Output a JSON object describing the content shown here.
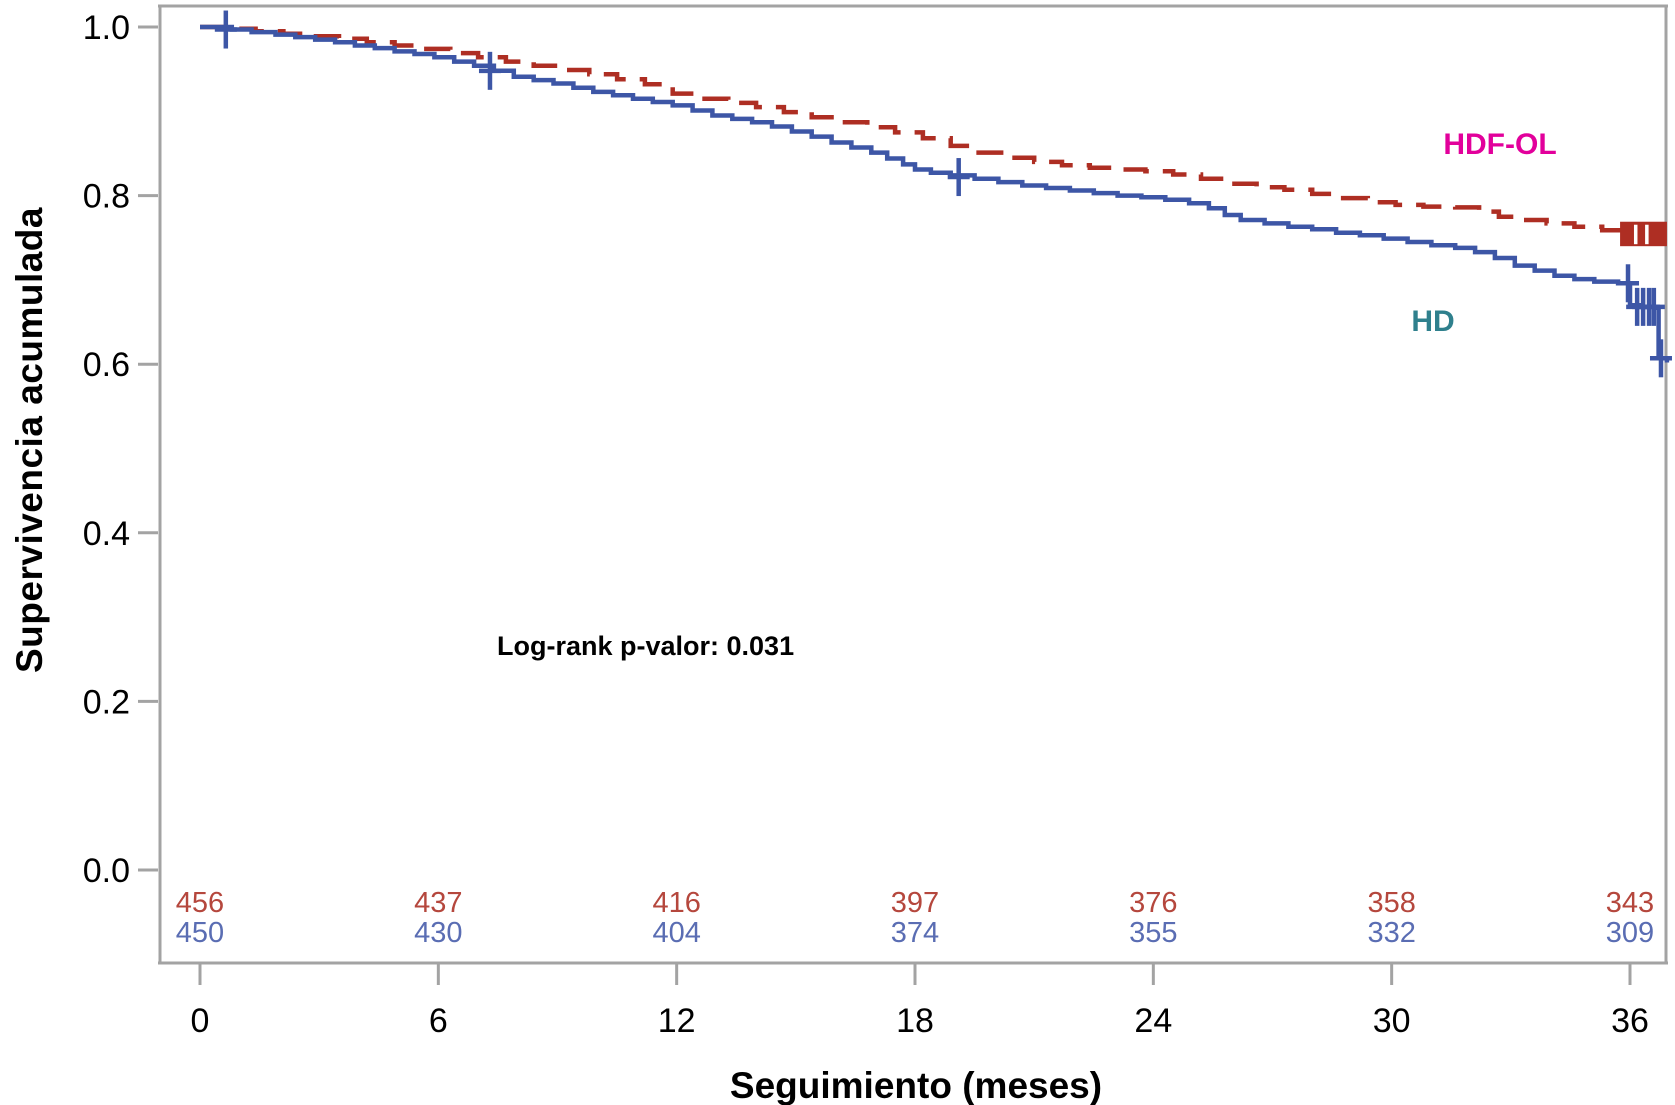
{
  "figure": {
    "y_axis": {
      "title": "Supervivencia acumulada",
      "tick_labels": [
        "1.0",
        "0.8",
        "0.6",
        "0.4",
        "0.2",
        "0.0"
      ],
      "tick_values": [
        1.0,
        0.8,
        0.6,
        0.4,
        0.2,
        0.0
      ],
      "range": [
        0.0,
        1.0
      ]
    },
    "x_axis": {
      "title": "Seguimiento (meses)",
      "tick_labels": [
        "0",
        "6",
        "12",
        "18",
        "24",
        "30",
        "36"
      ],
      "tick_values": [
        0,
        6,
        12,
        18,
        24,
        30,
        36
      ],
      "range": [
        0,
        37
      ]
    },
    "annotation": "Log-rank p-valor: 0.031",
    "series_labels": {
      "hdfol": {
        "text": "HDF-OL",
        "color": "#E2009B"
      },
      "hd": {
        "text": "HD",
        "color": "#2F808D"
      }
    },
    "colors": {
      "hdfol_line": "#AE2E23",
      "hd_line": "#3D56A6",
      "risk_red_text": "#B5473D",
      "risk_blue_text": "#5A6DB3",
      "frame_grey": "#A3A3A3",
      "text_black": "#000000"
    }
  },
  "chart_data": {
    "type": "line",
    "subtype": "kaplan-meier-step",
    "title": "",
    "xlabel": "Seguimiento (meses)",
    "ylabel": "Supervivencia acumulada",
    "xlim": [
      0,
      37
    ],
    "ylim": [
      0.0,
      1.0
    ],
    "grid": false,
    "legend_position": "inline-labels",
    "annotation": "Log-rank p-valor: 0.031",
    "series": [
      {
        "name": "HDF-OL",
        "color": "#AE2E23",
        "style": "dashed",
        "points": [
          [
            0,
            1.0
          ],
          [
            0.7,
            0.998
          ],
          [
            1.4,
            0.995
          ],
          [
            2.1,
            0.992
          ],
          [
            2.8,
            0.989
          ],
          [
            3.5,
            0.986
          ],
          [
            4.2,
            0.982
          ],
          [
            4.9,
            0.978
          ],
          [
            5.6,
            0.974
          ],
          [
            6.3,
            0.969
          ],
          [
            7.0,
            0.964
          ],
          [
            7.7,
            0.959
          ],
          [
            8.4,
            0.954
          ],
          [
            9.1,
            0.949
          ],
          [
            9.8,
            0.944
          ],
          [
            10.5,
            0.938
          ],
          [
            11.2,
            0.932
          ],
          [
            11.9,
            0.921
          ],
          [
            12.6,
            0.915
          ],
          [
            13.3,
            0.91
          ],
          [
            14.0,
            0.905
          ],
          [
            14.7,
            0.899
          ],
          [
            15.4,
            0.893
          ],
          [
            16.1,
            0.887
          ],
          [
            16.8,
            0.881
          ],
          [
            17.5,
            0.875
          ],
          [
            18.2,
            0.868
          ],
          [
            18.9,
            0.859
          ],
          [
            19.6,
            0.851
          ],
          [
            20.3,
            0.845
          ],
          [
            21.0,
            0.84
          ],
          [
            21.7,
            0.836
          ],
          [
            22.4,
            0.833
          ],
          [
            23.1,
            0.831
          ],
          [
            23.8,
            0.829
          ],
          [
            24.5,
            0.825
          ],
          [
            25.2,
            0.82
          ],
          [
            25.9,
            0.814
          ],
          [
            26.6,
            0.81
          ],
          [
            27.3,
            0.807
          ],
          [
            28.0,
            0.802
          ],
          [
            28.7,
            0.797
          ],
          [
            29.4,
            0.792
          ],
          [
            30.1,
            0.789
          ],
          [
            30.8,
            0.787
          ],
          [
            31.6,
            0.786
          ],
          [
            32.2,
            0.781
          ],
          [
            32.7,
            0.775
          ],
          [
            33.2,
            0.771
          ],
          [
            33.9,
            0.767
          ],
          [
            34.6,
            0.763
          ],
          [
            35.3,
            0.759
          ],
          [
            35.8,
            0.755
          ],
          [
            36.93,
            0.753
          ]
        ],
        "censor_block": {
          "x_start": 35.75,
          "x_end": 36.93,
          "v_top": 0.769,
          "v_bottom": 0.74,
          "gap_months": [
            36.1,
            36.38
          ]
        }
      },
      {
        "name": "HD",
        "color": "#3D56A6",
        "style": "solid",
        "points": [
          [
            0,
            1.0
          ],
          [
            0.8,
            0.997
          ],
          [
            1.3,
            0.994
          ],
          [
            1.9,
            0.991
          ],
          [
            2.4,
            0.988
          ],
          [
            2.9,
            0.985
          ],
          [
            3.4,
            0.982
          ],
          [
            3.9,
            0.978
          ],
          [
            4.4,
            0.975
          ],
          [
            4.9,
            0.971
          ],
          [
            5.4,
            0.968
          ],
          [
            5.9,
            0.964
          ],
          [
            6.4,
            0.959
          ],
          [
            6.9,
            0.954
          ],
          [
            7.4,
            0.948
          ],
          [
            7.9,
            0.941
          ],
          [
            8.4,
            0.937
          ],
          [
            8.9,
            0.933
          ],
          [
            9.4,
            0.928
          ],
          [
            9.9,
            0.923
          ],
          [
            10.4,
            0.919
          ],
          [
            10.9,
            0.915
          ],
          [
            11.4,
            0.911
          ],
          [
            11.9,
            0.907
          ],
          [
            12.4,
            0.901
          ],
          [
            12.9,
            0.895
          ],
          [
            13.4,
            0.891
          ],
          [
            13.9,
            0.887
          ],
          [
            14.4,
            0.882
          ],
          [
            14.9,
            0.876
          ],
          [
            15.4,
            0.87
          ],
          [
            15.9,
            0.863
          ],
          [
            16.4,
            0.857
          ],
          [
            16.9,
            0.851
          ],
          [
            17.3,
            0.844
          ],
          [
            17.7,
            0.837
          ],
          [
            18.0,
            0.831
          ],
          [
            18.4,
            0.827
          ],
          [
            18.9,
            0.824
          ],
          [
            19.5,
            0.82
          ],
          [
            20.1,
            0.816
          ],
          [
            20.7,
            0.812
          ],
          [
            21.3,
            0.809
          ],
          [
            21.9,
            0.806
          ],
          [
            22.5,
            0.803
          ],
          [
            23.1,
            0.8
          ],
          [
            23.7,
            0.798
          ],
          [
            24.3,
            0.795
          ],
          [
            24.9,
            0.791
          ],
          [
            25.4,
            0.785
          ],
          [
            25.8,
            0.777
          ],
          [
            26.2,
            0.771
          ],
          [
            26.8,
            0.767
          ],
          [
            27.4,
            0.763
          ],
          [
            28.0,
            0.76
          ],
          [
            28.6,
            0.756
          ],
          [
            29.2,
            0.753
          ],
          [
            29.8,
            0.749
          ],
          [
            30.4,
            0.745
          ],
          [
            31.0,
            0.741
          ],
          [
            31.6,
            0.738
          ],
          [
            32.1,
            0.733
          ],
          [
            32.6,
            0.726
          ],
          [
            33.1,
            0.717
          ],
          [
            33.6,
            0.711
          ],
          [
            34.1,
            0.705
          ],
          [
            34.6,
            0.701
          ],
          [
            35.1,
            0.698
          ],
          [
            35.7,
            0.696
          ],
          [
            36.0,
            0.67
          ],
          [
            36.3,
            0.668
          ],
          [
            36.68,
            0.667
          ],
          [
            36.72,
            0.607
          ],
          [
            36.93,
            0.602
          ]
        ],
        "censors": [
          [
            0.65,
            0.997
          ],
          [
            7.3,
            0.948
          ],
          [
            19.1,
            0.822
          ],
          [
            35.95,
            0.696
          ],
          [
            36.18,
            0.668
          ],
          [
            36.33,
            0.668
          ],
          [
            36.48,
            0.668
          ],
          [
            36.6,
            0.668
          ],
          [
            36.78,
            0.607
          ]
        ]
      }
    ],
    "numbers_at_risk": {
      "times": [
        0,
        6,
        12,
        18,
        24,
        30,
        36
      ],
      "rows": [
        {
          "name": "HDF-OL",
          "color": "#B5473D",
          "counts": [
            456,
            437,
            416,
            397,
            376,
            358,
            343
          ]
        },
        {
          "name": "HD",
          "color": "#5A6DB3",
          "counts": [
            450,
            430,
            404,
            374,
            355,
            332,
            309
          ]
        }
      ]
    }
  }
}
